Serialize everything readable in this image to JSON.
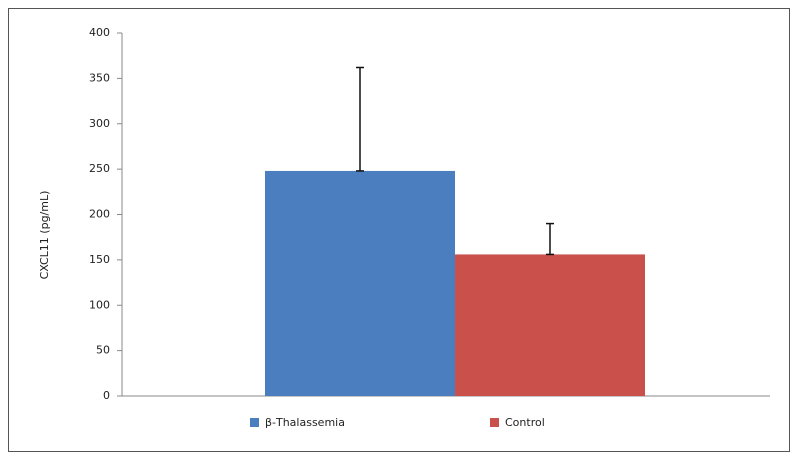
{
  "chart_data": {
    "type": "bar",
    "ylabel": "CXCL11 (pg/mL)",
    "categories": [
      null
    ],
    "series": [
      {
        "name": "β-Thalassemia",
        "color": "#4a7ebf",
        "values": [
          248
        ],
        "errors": [
          114
        ]
      },
      {
        "name": "Control",
        "color": "#c9504b",
        "values": [
          156
        ],
        "errors": [
          34
        ]
      }
    ],
    "ylim": [
      0,
      400
    ],
    "yticks": [
      0,
      50,
      100,
      150,
      200,
      250,
      300,
      350,
      400
    ],
    "grid": false,
    "legend": "bottom"
  }
}
